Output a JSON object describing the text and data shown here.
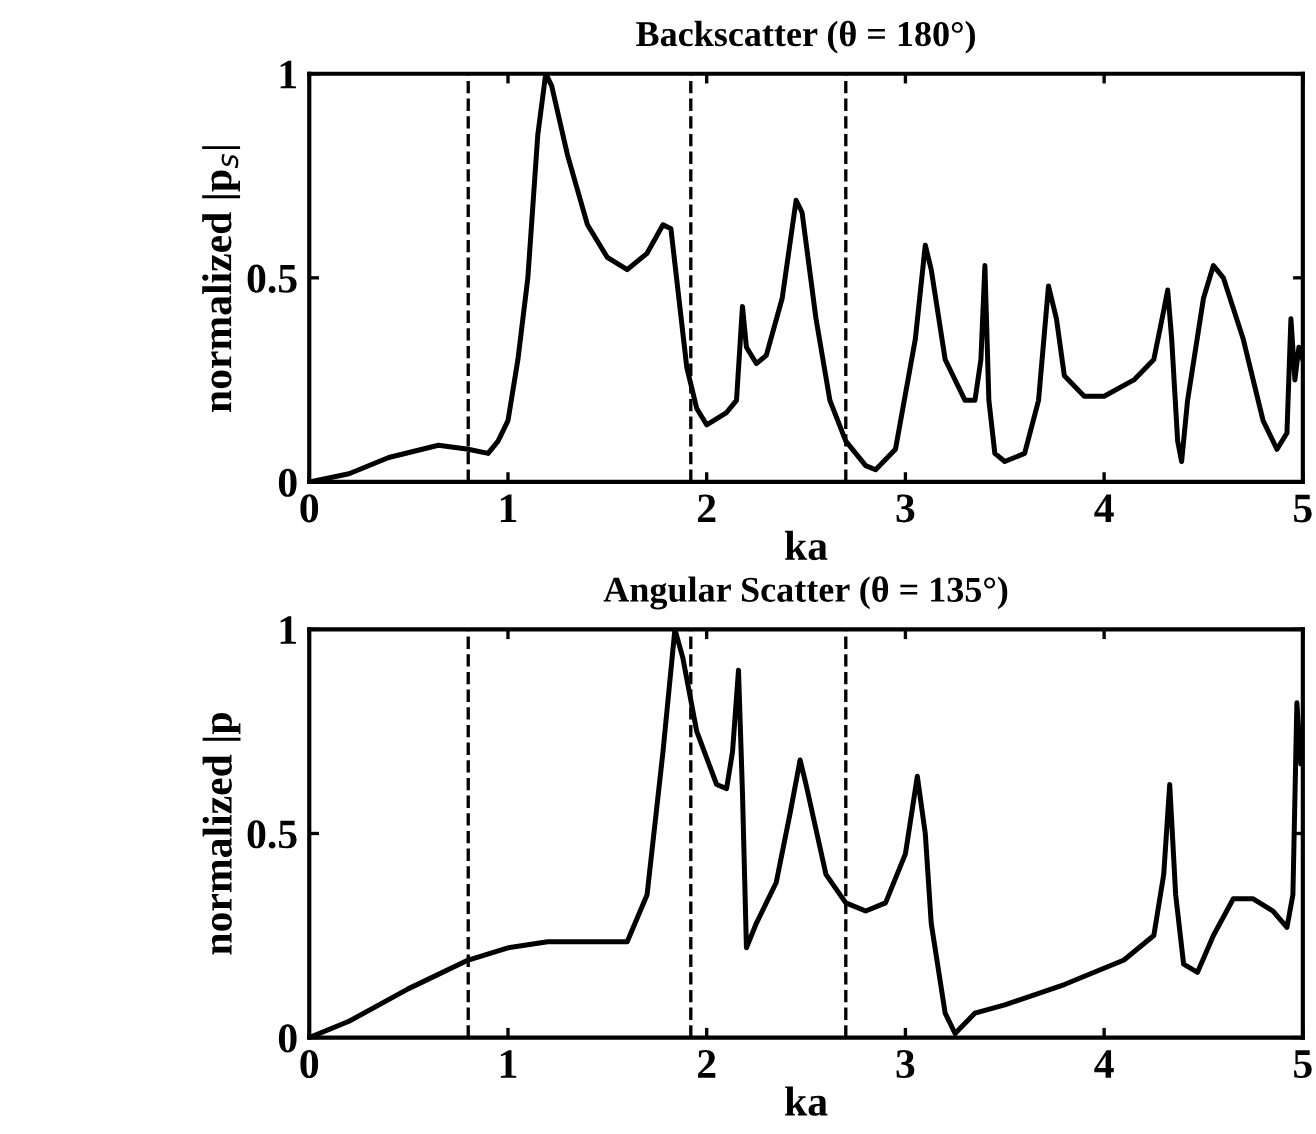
{
  "chart_data": [
    {
      "type": "line",
      "title": "Backscatter (θ = 180°)",
      "xlabel": "ka",
      "ylabel": "normalized |p$_{s}$|",
      "xlim": [
        0,
        5
      ],
      "ylim": [
        0,
        1
      ],
      "xticks": [
        0,
        1,
        2,
        3,
        4,
        5
      ],
      "yticks": [
        0,
        0.5,
        1
      ],
      "grid": false,
      "legend": false,
      "marker": "none",
      "line_style": "solid",
      "ref_lines": [
        {
          "axis": "x",
          "value": 0.8,
          "line_style": "dashed",
          "color": "#000000"
        },
        {
          "axis": "x",
          "value": 1.92,
          "line_style": "dashed",
          "color": "#000000"
        },
        {
          "axis": "x",
          "value": 2.7,
          "line_style": "dashed",
          "color": "#000000"
        }
      ],
      "series": [
        {
          "color": "#000000",
          "x": [
            0,
            0.2,
            0.4,
            0.65,
            0.8,
            0.9,
            0.95,
            1.0,
            1.05,
            1.1,
            1.15,
            1.19,
            1.22,
            1.3,
            1.4,
            1.5,
            1.6,
            1.7,
            1.78,
            1.82,
            1.86,
            1.9,
            1.95,
            2.0,
            2.1,
            2.15,
            2.18,
            2.2,
            2.25,
            2.3,
            2.38,
            2.45,
            2.48,
            2.55,
            2.62,
            2.7,
            2.8,
            2.85,
            2.95,
            3.05,
            3.1,
            3.13,
            3.2,
            3.3,
            3.35,
            3.38,
            3.4,
            3.42,
            3.45,
            3.5,
            3.6,
            3.67,
            3.72,
            3.76,
            3.8,
            3.9,
            4.0,
            4.15,
            4.25,
            4.3,
            4.32,
            4.34,
            4.37,
            4.39,
            4.42,
            4.5,
            4.55,
            4.6,
            4.7,
            4.8,
            4.87,
            4.92,
            4.94,
            4.96,
            4.98,
            5.0
          ],
          "values": [
            0,
            0.02,
            0.06,
            0.09,
            0.08,
            0.07,
            0.1,
            0.15,
            0.3,
            0.5,
            0.85,
            1.0,
            0.97,
            0.8,
            0.63,
            0.55,
            0.52,
            0.56,
            0.63,
            0.62,
            0.45,
            0.28,
            0.18,
            0.14,
            0.17,
            0.2,
            0.43,
            0.33,
            0.29,
            0.31,
            0.45,
            0.69,
            0.66,
            0.4,
            0.2,
            0.1,
            0.04,
            0.03,
            0.08,
            0.35,
            0.58,
            0.52,
            0.3,
            0.2,
            0.2,
            0.3,
            0.53,
            0.2,
            0.07,
            0.05,
            0.07,
            0.2,
            0.48,
            0.4,
            0.26,
            0.21,
            0.21,
            0.25,
            0.3,
            0.42,
            0.47,
            0.35,
            0.1,
            0.05,
            0.2,
            0.45,
            0.53,
            0.5,
            0.35,
            0.15,
            0.08,
            0.12,
            0.4,
            0.25,
            0.33,
            0.3
          ]
        }
      ]
    },
    {
      "type": "line",
      "title": "Angular Scatter (θ = 135°)",
      "xlabel": "ka",
      "ylabel": "normalized |p",
      "xlim": [
        0,
        5
      ],
      "ylim": [
        0,
        1
      ],
      "xticks": [
        0,
        1,
        2,
        3,
        4,
        5
      ],
      "yticks": [
        0,
        0.5,
        1
      ],
      "grid": false,
      "legend": false,
      "marker": "none",
      "line_style": "solid",
      "ref_lines": [
        {
          "axis": "x",
          "value": 0.8,
          "line_style": "dashed",
          "color": "#000000"
        },
        {
          "axis": "x",
          "value": 1.92,
          "line_style": "dashed",
          "color": "#000000"
        },
        {
          "axis": "x",
          "value": 2.7,
          "line_style": "dashed",
          "color": "#000000"
        }
      ],
      "series": [
        {
          "color": "#000000",
          "x": [
            0,
            0.2,
            0.5,
            0.8,
            1.0,
            1.2,
            1.6,
            1.7,
            1.78,
            1.84,
            1.88,
            1.95,
            2.05,
            2.1,
            2.13,
            2.16,
            2.18,
            2.2,
            2.25,
            2.35,
            2.42,
            2.47,
            2.5,
            2.6,
            2.7,
            2.8,
            2.9,
            3.0,
            3.06,
            3.1,
            3.13,
            3.2,
            3.25,
            3.35,
            3.5,
            3.8,
            4.1,
            4.25,
            4.3,
            4.33,
            4.36,
            4.4,
            4.47,
            4.55,
            4.65,
            4.75,
            4.85,
            4.92,
            4.95,
            4.97,
            4.99,
            5.0
          ],
          "values": [
            0,
            0.04,
            0.12,
            0.19,
            0.22,
            0.235,
            0.235,
            0.35,
            0.7,
            1.0,
            0.93,
            0.75,
            0.62,
            0.61,
            0.7,
            0.9,
            0.6,
            0.22,
            0.28,
            0.38,
            0.55,
            0.68,
            0.62,
            0.4,
            0.33,
            0.31,
            0.33,
            0.45,
            0.64,
            0.5,
            0.28,
            0.06,
            0.01,
            0.06,
            0.08,
            0.13,
            0.19,
            0.25,
            0.4,
            0.62,
            0.35,
            0.18,
            0.16,
            0.25,
            0.34,
            0.34,
            0.31,
            0.27,
            0.35,
            0.82,
            0.67,
            0.72
          ]
        }
      ]
    }
  ]
}
